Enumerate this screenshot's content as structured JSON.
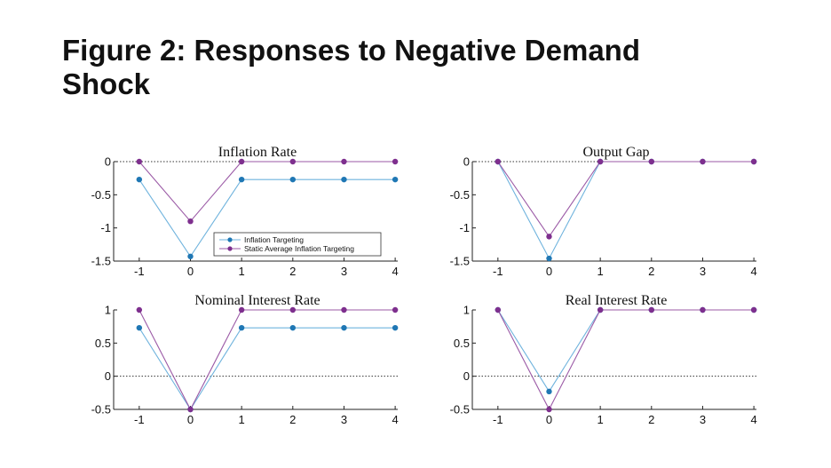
{
  "slide": {
    "title_line1": "Figure 2: Responses to Negative Demand",
    "title_line2": "Shock"
  },
  "colors": {
    "inflation_targeting": "#1f77b4",
    "static_ait": "#7e2f8e",
    "line_it": "#6fb3dd",
    "line_sait": "#9b5aa6"
  },
  "chart_data": [
    {
      "type": "line",
      "title": "Inflation Rate",
      "x": [
        -1,
        0,
        1,
        2,
        3,
        4
      ],
      "xticks": [
        "-1",
        "0",
        "1",
        "2",
        "3",
        "4"
      ],
      "ylim": [
        -1.5,
        0
      ],
      "yticks": [
        0,
        -0.5,
        -1,
        -1.5
      ],
      "ytick_labels": [
        "0",
        "-0.5",
        "-1",
        "-1.5"
      ],
      "series": [
        {
          "name": "Inflation Targeting",
          "values": [
            -0.27,
            -1.43,
            -0.27,
            -0.27,
            -0.27,
            -0.27
          ]
        },
        {
          "name": "Static Average Inflation Targeting",
          "values": [
            0,
            -0.9,
            0,
            0,
            0,
            0
          ]
        }
      ],
      "legend": "lower-right"
    },
    {
      "type": "line",
      "title": "Output Gap",
      "x": [
        -1,
        0,
        1,
        2,
        3,
        4
      ],
      "xticks": [
        "-1",
        "0",
        "1",
        "2",
        "3",
        "4"
      ],
      "ylim": [
        -1.5,
        0
      ],
      "yticks": [
        0,
        -0.5,
        -1,
        -1.5
      ],
      "ytick_labels": [
        "0",
        "-0.5",
        "-1",
        "-1.5"
      ],
      "series": [
        {
          "name": "Inflation Targeting",
          "values": [
            0,
            -1.46,
            0,
            0,
            0,
            0
          ]
        },
        {
          "name": "Static Average Inflation Targeting",
          "values": [
            0,
            -1.13,
            0,
            0,
            0,
            0
          ]
        }
      ]
    },
    {
      "type": "line",
      "title": "Nominal Interest Rate",
      "x": [
        -1,
        0,
        1,
        2,
        3,
        4
      ],
      "xticks": [
        "-1",
        "0",
        "1",
        "2",
        "3",
        "4"
      ],
      "ylim": [
        -0.5,
        1
      ],
      "yticks": [
        1,
        0.5,
        0,
        -0.5
      ],
      "ytick_labels": [
        "1",
        "0.5",
        "0",
        "-0.5"
      ],
      "series": [
        {
          "name": "Inflation Targeting",
          "values": [
            0.73,
            -0.5,
            0.73,
            0.73,
            0.73,
            0.73
          ]
        },
        {
          "name": "Static Average Inflation Targeting",
          "values": [
            1,
            -0.5,
            1,
            1,
            1,
            1
          ]
        }
      ]
    },
    {
      "type": "line",
      "title": "Real Interest Rate",
      "x": [
        -1,
        0,
        1,
        2,
        3,
        4
      ],
      "xticks": [
        "-1",
        "0",
        "1",
        "2",
        "3",
        "4"
      ],
      "ylim": [
        -0.5,
        1
      ],
      "yticks": [
        1,
        0.5,
        0,
        -0.5
      ],
      "ytick_labels": [
        "1",
        "0.5",
        "0",
        "-0.5"
      ],
      "series": [
        {
          "name": "Inflation Targeting",
          "values": [
            1,
            -0.23,
            1,
            1,
            1,
            1
          ]
        },
        {
          "name": "Static Average Inflation Targeting",
          "values": [
            1,
            -0.5,
            1,
            1,
            1,
            1
          ]
        }
      ]
    }
  ]
}
